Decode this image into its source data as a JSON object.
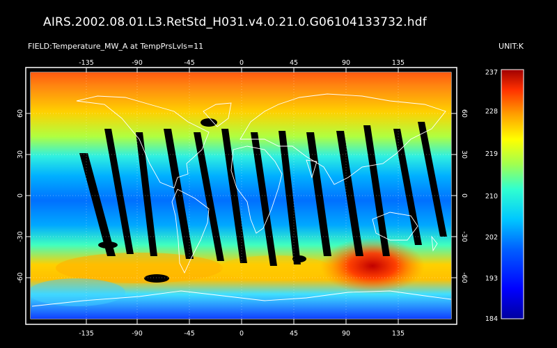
{
  "header": {
    "file_title": "AIRS.2002.08.01.L3.RetStd_H031.v4.0.21.0.G06104133732.hdf",
    "field_label": "FIELD:Temperature_MW_A at TempPrsLvls=11",
    "unit_label": "UNIT:K"
  },
  "map": {
    "lon_ticks": [
      "-135",
      "-90",
      "-45",
      "0",
      "45",
      "90",
      "135"
    ],
    "lat_ticks": [
      "60",
      "30",
      "0",
      "-30",
      "-60"
    ],
    "lat_ticks_right": [
      "60",
      "30",
      "0",
      "-30",
      "-60"
    ]
  },
  "colorbar": {
    "labels": [
      "237",
      "228",
      "219",
      "210",
      "202",
      "193",
      "184"
    ],
    "colors": [
      "#0000a0",
      "#0000ff",
      "#0060ff",
      "#00c8ff",
      "#30ffd0",
      "#a0ff50",
      "#ffff00",
      "#ffa000",
      "#ff3000",
      "#a00000"
    ]
  }
}
